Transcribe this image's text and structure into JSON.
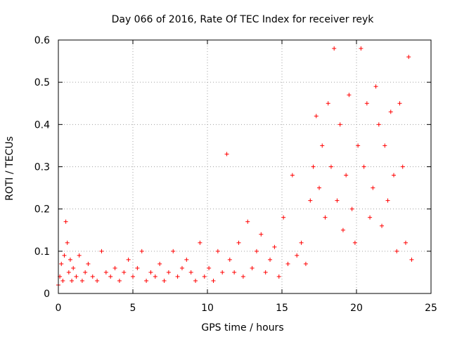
{
  "chart_data": {
    "type": "scatter",
    "title": "Day 066 of 2016, Rate Of TEC Index for receiver reyk",
    "xlabel": "GPS time / hours",
    "ylabel": "ROTI / TECUs",
    "xlim": [
      0,
      25
    ],
    "ylim": [
      0,
      0.6
    ],
    "x_ticks": [
      0,
      5,
      10,
      15,
      20,
      25
    ],
    "x_tick_labels": [
      "0",
      "5",
      "10",
      "15",
      "20",
      "25"
    ],
    "y_ticks": [
      0,
      0.1,
      0.2,
      0.3,
      0.4,
      0.5,
      0.6
    ],
    "y_tick_labels": [
      "0",
      "0.1",
      "0.2",
      "0.3",
      "0.4",
      "0.5",
      "0.6"
    ],
    "grid": true,
    "marker": "+",
    "marker_color": "#ff0000",
    "series": [
      {
        "name": "ROTI",
        "x": [
          0.0,
          0.1,
          0.2,
          0.3,
          0.4,
          0.5,
          0.6,
          0.7,
          0.8,
          0.9,
          1.0,
          1.2,
          1.4,
          1.6,
          1.8,
          2.0,
          2.3,
          2.6,
          2.9,
          3.2,
          3.5,
          3.8,
          4.1,
          4.4,
          4.7,
          5.0,
          5.3,
          5.6,
          5.9,
          6.2,
          6.5,
          6.8,
          7.1,
          7.4,
          7.7,
          8.0,
          8.3,
          8.6,
          8.9,
          9.2,
          9.5,
          9.8,
          10.1,
          10.4,
          10.7,
          11.0,
          11.3,
          11.5,
          11.8,
          12.1,
          12.4,
          12.7,
          13.0,
          13.3,
          13.6,
          13.9,
          14.2,
          14.5,
          14.8,
          15.1,
          15.4,
          15.7,
          16.0,
          16.3,
          16.6,
          16.9,
          17.1,
          17.3,
          17.5,
          17.7,
          17.9,
          18.1,
          18.3,
          18.5,
          18.7,
          18.9,
          19.1,
          19.3,
          19.5,
          19.7,
          19.9,
          20.1,
          20.3,
          20.5,
          20.7,
          20.9,
          21.1,
          21.3,
          21.5,
          21.7,
          21.9,
          22.1,
          22.3,
          22.5,
          22.7,
          22.9,
          23.1,
          23.3,
          23.5,
          23.7
        ],
        "y": [
          0.02,
          0.04,
          0.07,
          0.03,
          0.09,
          0.17,
          0.12,
          0.05,
          0.08,
          0.03,
          0.06,
          0.04,
          0.09,
          0.03,
          0.05,
          0.07,
          0.04,
          0.03,
          0.1,
          0.05,
          0.04,
          0.06,
          0.03,
          0.05,
          0.08,
          0.04,
          0.06,
          0.1,
          0.03,
          0.05,
          0.04,
          0.07,
          0.03,
          0.05,
          0.1,
          0.04,
          0.06,
          0.08,
          0.05,
          0.03,
          0.12,
          0.04,
          0.06,
          0.03,
          0.1,
          0.05,
          0.33,
          0.08,
          0.05,
          0.12,
          0.04,
          0.17,
          0.06,
          0.1,
          0.14,
          0.05,
          0.08,
          0.11,
          0.04,
          0.18,
          0.07,
          0.28,
          0.09,
          0.12,
          0.07,
          0.22,
          0.3,
          0.42,
          0.25,
          0.35,
          0.18,
          0.45,
          0.3,
          0.58,
          0.22,
          0.4,
          0.15,
          0.28,
          0.47,
          0.2,
          0.12,
          0.35,
          0.58,
          0.3,
          0.45,
          0.18,
          0.25,
          0.49,
          0.4,
          0.16,
          0.35,
          0.22,
          0.43,
          0.28,
          0.1,
          0.45,
          0.3,
          0.12,
          0.56,
          0.08
        ]
      }
    ]
  }
}
